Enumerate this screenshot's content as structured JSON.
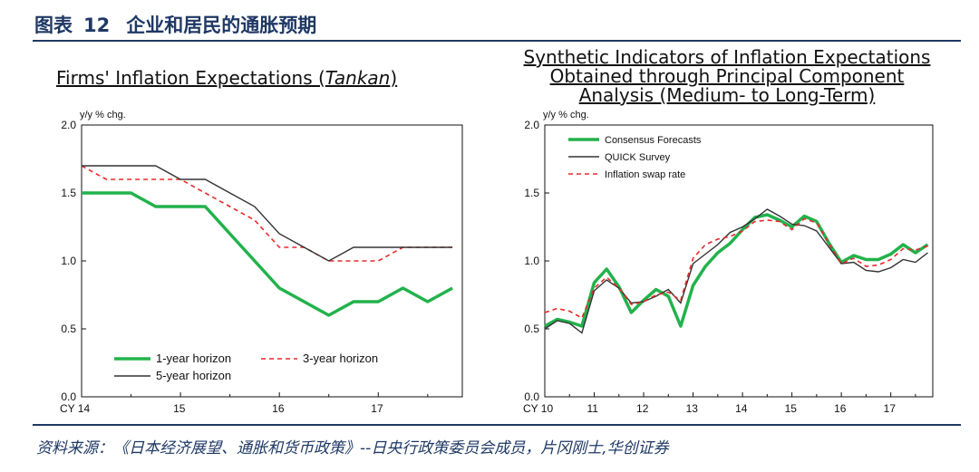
{
  "figure": {
    "label": "图表",
    "number": "12",
    "title": "企业和居民的通胀预期",
    "source": "资料来源：《日本经济展望、通胀和货币政策》--日央行政策委员会成员，片冈刚士,华创证券"
  },
  "left_title": {
    "before": "Firms' Inflation Expectations (",
    "italic": "Tankan",
    "after": ")"
  },
  "right_title": {
    "line1": "Synthetic Indicators of Inflation Expectations",
    "line2": "Obtained through Principal Component",
    "line3": "Analysis (Medium- to Long-Term)"
  },
  "colors": {
    "green": "#22b24c",
    "red": "#e8282a",
    "dark": "#333333",
    "navy": "#1f3864"
  },
  "chart_data": [
    {
      "type": "line",
      "title": "Firms' Inflation Expectations (Tankan)",
      "ylabel": "y/y % chg.",
      "ylim": [
        0.0,
        2.0
      ],
      "yticks": [
        "0.0",
        "0.5",
        "1.0",
        "1.5",
        "2.0"
      ],
      "xlim": [
        2014.0,
        2017.85
      ],
      "xticks": [
        {
          "x": 2014.0,
          "label": "CY 14"
        },
        {
          "x": 2015.0,
          "label": "15"
        },
        {
          "x": 2016.0,
          "label": "16"
        },
        {
          "x": 2017.0,
          "label": "17"
        }
      ],
      "x": [
        2014.0,
        2014.25,
        2014.5,
        2014.75,
        2015.0,
        2015.25,
        2015.5,
        2015.75,
        2016.0,
        2016.25,
        2016.5,
        2016.75,
        2017.0,
        2017.25,
        2017.5,
        2017.75
      ],
      "series": [
        {
          "name": "1-year horizon",
          "style": "green-thick",
          "values": [
            1.5,
            1.5,
            1.5,
            1.4,
            1.4,
            1.4,
            1.2,
            1.0,
            0.8,
            0.7,
            0.6,
            0.7,
            0.7,
            0.8,
            0.7,
            0.8
          ]
        },
        {
          "name": "3-year horizon",
          "style": "red-dash",
          "values": [
            1.7,
            1.6,
            1.6,
            1.6,
            1.6,
            1.5,
            1.4,
            1.3,
            1.1,
            1.1,
            1.0,
            1.0,
            1.0,
            1.1,
            1.1,
            1.1
          ]
        },
        {
          "name": "5-year horizon",
          "style": "dark-thin",
          "values": [
            1.7,
            1.7,
            1.7,
            1.7,
            1.6,
            1.6,
            1.5,
            1.4,
            1.2,
            1.1,
            1.0,
            1.1,
            1.1,
            1.1,
            1.1,
            1.1
          ]
        }
      ],
      "legend_rows": [
        [
          "1-year horizon",
          "3-year horizon"
        ],
        [
          "5-year horizon"
        ]
      ],
      "legend": "bottom-left"
    },
    {
      "type": "line",
      "title": "Synthetic Indicators of Inflation Expectations Obtained through Principal Component Analysis (Medium- to Long-Term)",
      "ylabel": "y/y % chg.",
      "ylim": [
        0.0,
        2.0
      ],
      "yticks": [
        "0.0",
        "0.5",
        "1.0",
        "1.5",
        "2.0"
      ],
      "xlim": [
        2010.0,
        2017.85
      ],
      "xticks": [
        {
          "x": 2010.0,
          "label": "CY 10"
        },
        {
          "x": 2011.0,
          "label": "11"
        },
        {
          "x": 2012.0,
          "label": "12"
        },
        {
          "x": 2013.0,
          "label": "13"
        },
        {
          "x": 2014.0,
          "label": "14"
        },
        {
          "x": 2015.0,
          "label": "15"
        },
        {
          "x": 2016.0,
          "label": "16"
        },
        {
          "x": 2017.0,
          "label": "17"
        }
      ],
      "x": [
        2010.0,
        2010.25,
        2010.5,
        2010.75,
        2011.0,
        2011.25,
        2011.5,
        2011.75,
        2012.0,
        2012.25,
        2012.5,
        2012.75,
        2013.0,
        2013.25,
        2013.5,
        2013.75,
        2014.0,
        2014.25,
        2014.5,
        2014.75,
        2015.0,
        2015.25,
        2015.5,
        2015.75,
        2016.0,
        2016.25,
        2016.5,
        2016.75,
        2017.0,
        2017.25,
        2017.5,
        2017.75
      ],
      "series": [
        {
          "name": "Consensus Forecasts",
          "style": "green-thick",
          "values": [
            0.52,
            0.57,
            0.55,
            0.52,
            0.84,
            0.94,
            0.81,
            0.62,
            0.71,
            0.79,
            0.74,
            0.52,
            0.82,
            0.96,
            1.06,
            1.13,
            1.23,
            1.32,
            1.34,
            1.3,
            1.25,
            1.33,
            1.29,
            1.13,
            0.99,
            1.04,
            1.01,
            1.01,
            1.05,
            1.12,
            1.06,
            1.12
          ]
        },
        {
          "name": "QUICK Survey",
          "style": "dark-thin",
          "values": [
            0.5,
            0.56,
            0.54,
            0.47,
            0.78,
            0.86,
            0.8,
            0.69,
            0.7,
            0.74,
            0.79,
            0.69,
            0.98,
            1.05,
            1.12,
            1.21,
            1.25,
            1.31,
            1.38,
            1.33,
            1.27,
            1.26,
            1.22,
            1.1,
            0.98,
            0.99,
            0.93,
            0.92,
            0.95,
            1.01,
            0.99,
            1.06
          ]
        },
        {
          "name": "Inflation swap rate",
          "style": "red-dash",
          "values": [
            0.62,
            0.65,
            0.63,
            0.58,
            0.8,
            0.88,
            0.8,
            0.68,
            0.7,
            0.75,
            0.77,
            0.71,
            1.02,
            1.12,
            1.16,
            1.18,
            1.22,
            1.29,
            1.3,
            1.29,
            1.23,
            1.31,
            1.28,
            1.13,
            0.98,
            1.02,
            0.96,
            0.97,
            1.01,
            1.09,
            1.08,
            1.11
          ]
        }
      ],
      "legend": "top-left"
    }
  ]
}
